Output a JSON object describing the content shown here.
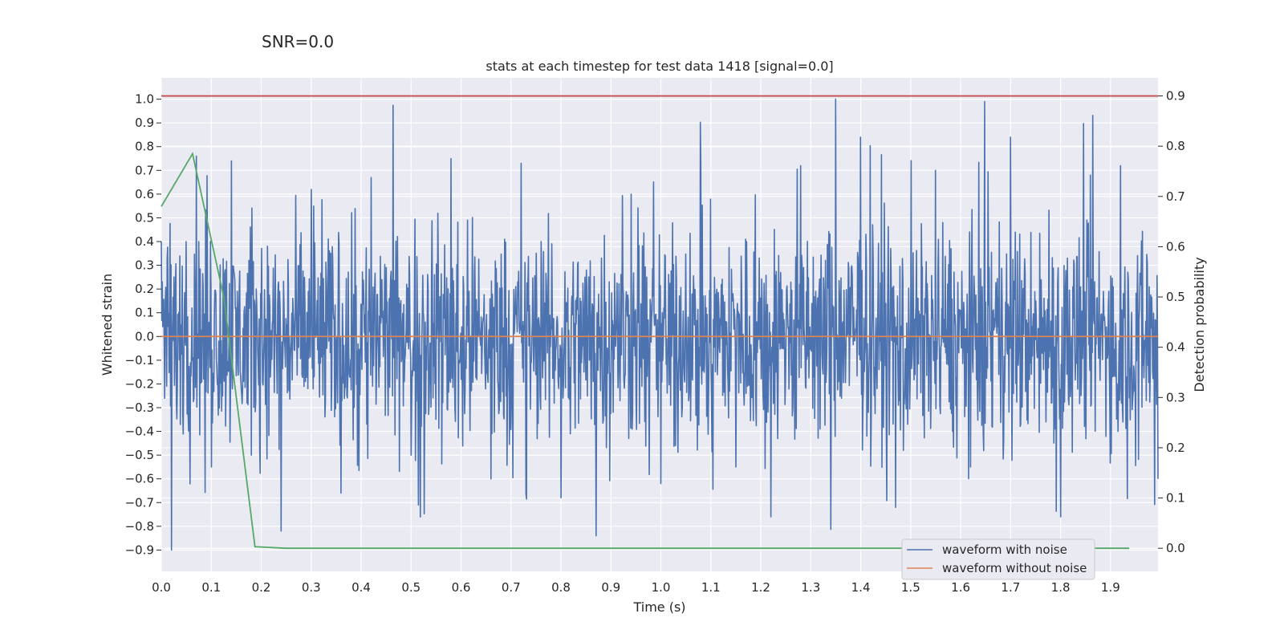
{
  "suptitle": "SNR=0.0",
  "chart_data": {
    "type": "line",
    "title": "stats at each timestep for test data 1418 [signal=0.0]",
    "xlabel": "Time (s)",
    "ylabel": "Whitened strain",
    "y2label": "Detection probability",
    "xlim": [
      0.0,
      1.995
    ],
    "ylim": [
      -0.99,
      1.09
    ],
    "y2lim": [
      -0.046,
      0.936
    ],
    "xticks": [
      0.0,
      0.1,
      0.2,
      0.3,
      0.4,
      0.5,
      0.6,
      0.7,
      0.8,
      0.9,
      1.0,
      1.1,
      1.2,
      1.3,
      1.4,
      1.5,
      1.6,
      1.7,
      1.8,
      1.9
    ],
    "xtick_labels": [
      "0.0",
      "0.1",
      "0.2",
      "0.3",
      "0.4",
      "0.5",
      "0.6",
      "0.7",
      "0.8",
      "0.9",
      "1.0",
      "1.1",
      "1.2",
      "1.3",
      "1.4",
      "1.5",
      "1.6",
      "1.7",
      "1.8",
      "1.9"
    ],
    "yticks": [
      1.0,
      0.9,
      0.8,
      0.7,
      0.6,
      0.5,
      0.4,
      0.3,
      0.2,
      0.1,
      0.0,
      -0.1,
      -0.2,
      -0.3,
      -0.4,
      -0.5,
      -0.6,
      -0.7,
      -0.8,
      -0.9
    ],
    "ytick_labels": [
      "1.0",
      "0.9",
      "0.8",
      "0.7",
      "0.6",
      "0.5",
      "0.4",
      "0.3",
      "0.2",
      "0.1",
      "0.0",
      "−0.1",
      "−0.2",
      "−0.3",
      "−0.4",
      "−0.5",
      "−0.6",
      "−0.7",
      "−0.8",
      "−0.9"
    ],
    "y2ticks": [
      0.9,
      0.8,
      0.7,
      0.6,
      0.5,
      0.4,
      0.3,
      0.2,
      0.1,
      0.0
    ],
    "y2tick_labels": [
      "0.9",
      "0.8",
      "0.7",
      "0.6",
      "0.5",
      "0.4",
      "0.3",
      "0.2",
      "0.1",
      "0.0"
    ],
    "grid": true,
    "legend_position": "bottom-right",
    "series": [
      {
        "name": "waveform with noise",
        "axis": "left",
        "color": "#4c72b0",
        "note": "dense noise trace, 2048 samples over 2 s; representative sample below",
        "x": [
          0.0,
          0.02,
          0.05,
          0.07,
          0.1,
          0.14,
          0.18,
          0.24,
          0.3,
          0.36,
          0.42,
          0.5,
          0.58,
          0.66,
          0.72,
          0.8,
          0.87,
          0.94,
          1.0,
          1.08,
          1.15,
          1.22,
          1.28,
          1.35,
          1.4,
          1.47,
          1.55,
          1.62,
          1.7,
          1.8,
          1.86,
          1.92,
          1.995
        ],
        "y": [
          0.4,
          -0.9,
          0.4,
          0.76,
          -0.55,
          0.74,
          -0.5,
          -0.82,
          0.62,
          -0.66,
          0.67,
          -0.5,
          0.75,
          -0.6,
          0.73,
          -0.68,
          -0.84,
          0.6,
          -0.62,
          0.72,
          -0.55,
          -0.76,
          0.72,
          1.0,
          0.84,
          -0.72,
          0.7,
          -0.55,
          0.84,
          -0.76,
          0.68,
          0.72,
          -0.6
        ],
        "envelope": [
          -0.4,
          0.5
        ]
      },
      {
        "name": "waveform without noise",
        "axis": "left",
        "color": "#dd8452",
        "x": [
          0.0,
          1.995
        ],
        "y": [
          0.0,
          0.0
        ]
      },
      {
        "name": "detection probability",
        "axis": "right",
        "color": "#55a868",
        "x": [
          0.0,
          0.0625,
          0.125,
          0.1875,
          0.25,
          1.9375
        ],
        "y": [
          0.68,
          0.785,
          0.5,
          0.003,
          0.0,
          0.0
        ]
      }
    ],
    "threshold": {
      "axis": "right",
      "value": 0.9,
      "color": "#c44e52"
    }
  }
}
